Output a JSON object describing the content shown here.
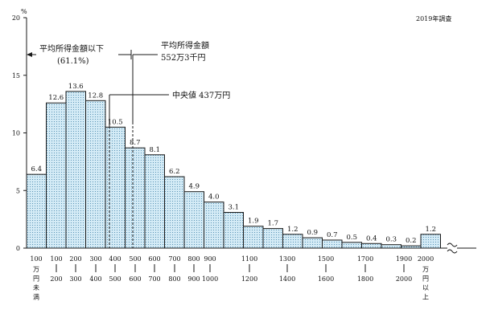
{
  "chart_data": {
    "type": "bar",
    "unit": "%",
    "survey_note": "2019年調査",
    "ylim": [
      0,
      20
    ],
    "y_ticks": [
      "0",
      "5",
      "10",
      "15",
      "20"
    ],
    "values": [
      6.4,
      12.6,
      13.6,
      12.8,
      10.5,
      8.7,
      8.1,
      6.2,
      4.9,
      4.0,
      3.1,
      1.9,
      1.7,
      1.2,
      0.9,
      0.7,
      0.5,
      0.4,
      0.3,
      0.2,
      1.2
    ],
    "value_labels": [
      "6.4",
      "12.6",
      "13.6",
      "12.8",
      "10.5",
      "8.7",
      "8.1",
      "6.2",
      "4.9",
      "4.0",
      "3.1",
      "1.9",
      "1.7",
      "1.2",
      "0.9",
      "0.7",
      "0.5",
      "0.4",
      "0.3",
      "0.2",
      "1.2"
    ],
    "x_tick_labels": [
      {
        "top": "100",
        "bottom": "万円未満",
        "vertical": true
      },
      {
        "top": "100",
        "bottom": "200"
      },
      {
        "top": "200",
        "bottom": "300"
      },
      {
        "top": "300",
        "bottom": "400"
      },
      {
        "top": "400",
        "bottom": "500"
      },
      {
        "top": "500",
        "bottom": "600"
      },
      {
        "top": "600",
        "bottom": "700"
      },
      {
        "top": "700",
        "bottom": "800"
      },
      {
        "top": "800",
        "bottom": "900"
      },
      {
        "top": "900",
        "bottom": "1000"
      },
      {
        "top": "1100",
        "bottom": "1200"
      },
      {
        "top": "1300",
        "bottom": "1400"
      },
      {
        "top": "1500",
        "bottom": "1600"
      },
      {
        "top": "1700",
        "bottom": "1800"
      },
      {
        "top": "1900",
        "bottom": "2000"
      },
      {
        "top": "2000",
        "bottom": "万円以上",
        "vertical": true
      }
    ],
    "annotations": {
      "below_average_title": "平均所得金額以下",
      "below_average_value": "(61.1%)",
      "average_title": "平均所得金額",
      "average_value": "552万3千円",
      "median_label": "中央値 437万円"
    },
    "colors": {
      "bar_fill": "#c9e4f2",
      "bar_stroke": "#1a1a1a",
      "axis": "#1a1a1a",
      "dot": "#3b7fa6"
    }
  }
}
